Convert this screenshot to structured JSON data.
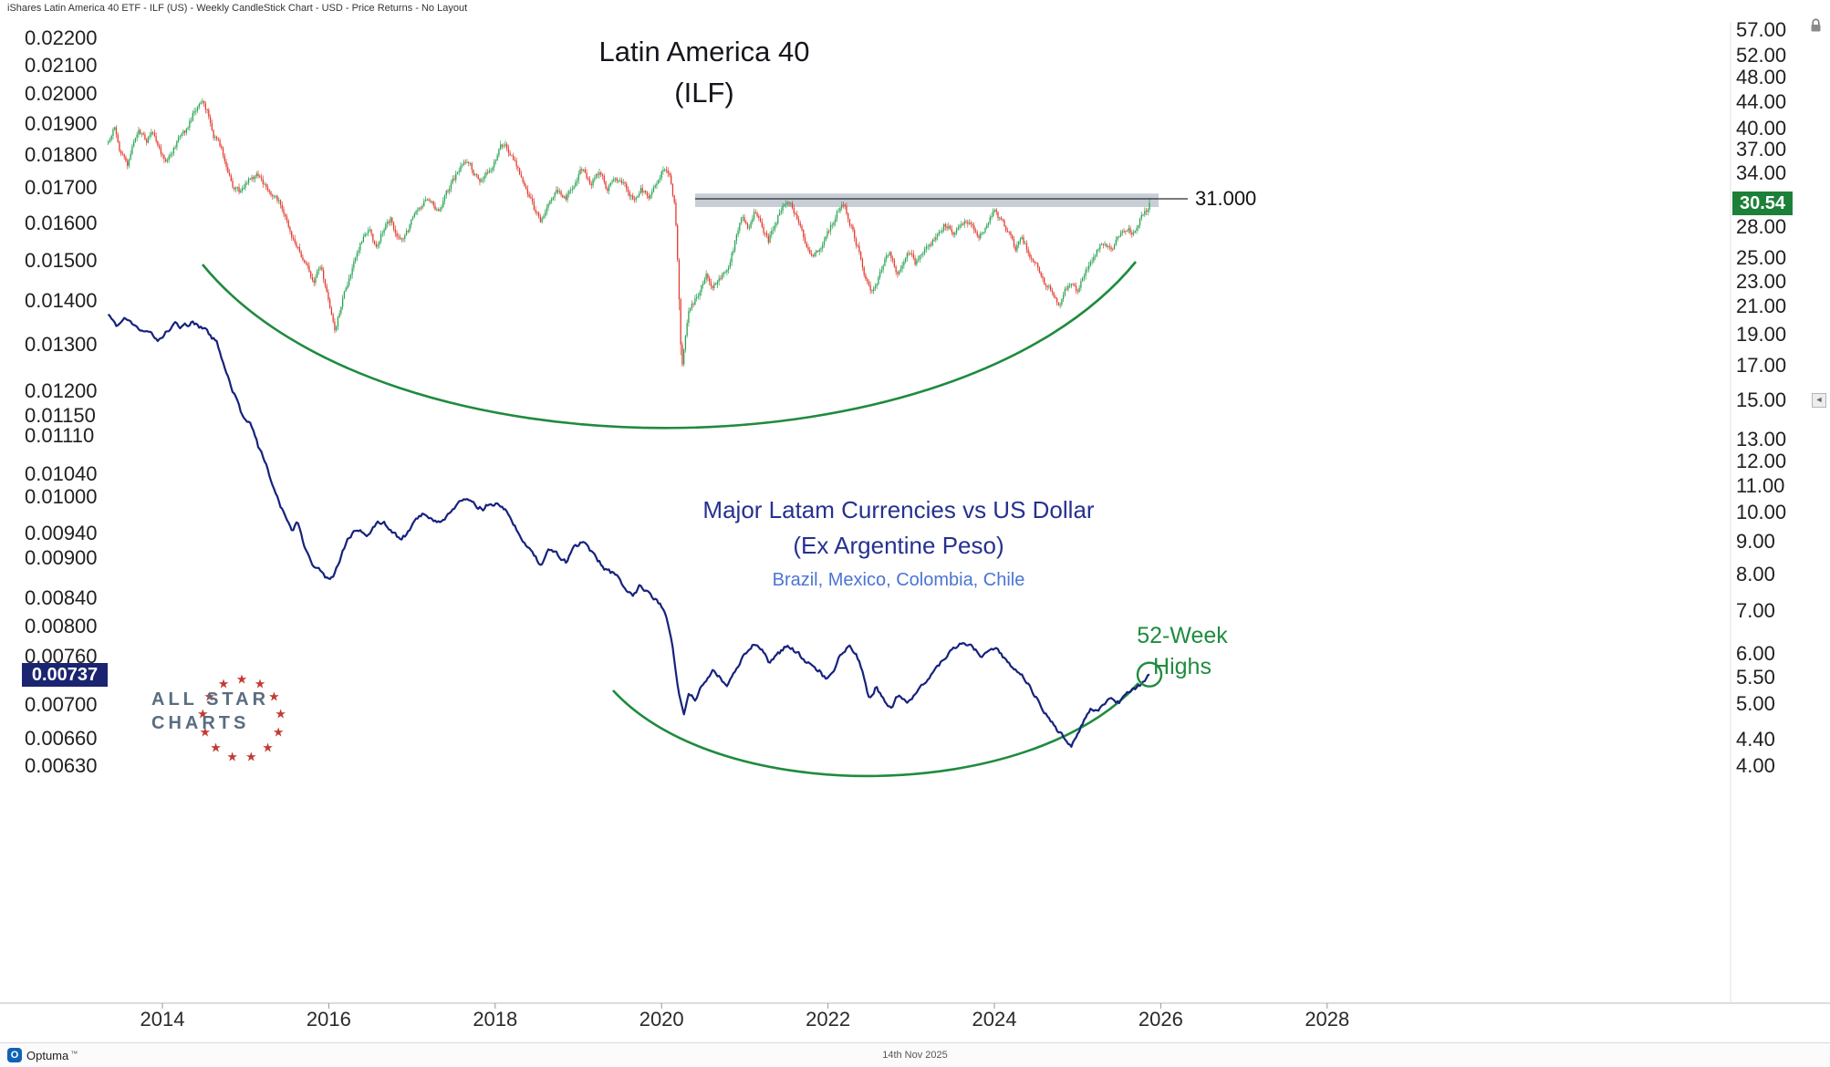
{
  "window": {
    "titlebar_text": "iShares Latin America 40 ETF - ILF (US) - Weekly CandleStick Chart - USD - Price Returns - No Layout",
    "statusbar": {
      "brand": "Optuma",
      "trademark": "™",
      "date": "14th Nov 2025"
    }
  },
  "annotations": {
    "main_title": {
      "line1": "Latin America 40",
      "line2": "(ILF)"
    },
    "currency_title": {
      "line1": "Major Latam Currencies vs US Dollar",
      "line2": "(Ex Argentine Peso)",
      "line3": "Brazil, Mexico, Colombia, Chile"
    },
    "highs_label": {
      "line1": "52-Week",
      "line2": "Highs"
    },
    "resistance_label": "31.000",
    "ilf_price_label": "30.54",
    "currency_price_label": "0.00737",
    "logo": {
      "line1": "ALL STAR",
      "line2": "CHARTS",
      "star_count": 13
    }
  },
  "colors": {
    "candle_up": "#27a351",
    "candle_down": "#e23b30",
    "currency_line": "#16227c",
    "arc_green": "#1f8b3e",
    "resistance_band": "#c7ced6",
    "resistance_line": "#2b2b2b",
    "ilf_price_box": "#1d8038",
    "currency_price_box": "#1b2470",
    "logo_text": "#5a6d80",
    "logo_star": "#c23a32"
  },
  "axes": {
    "x": {
      "ticks": [
        "2014",
        "2016",
        "2018",
        "2020",
        "2022",
        "2024",
        "2026",
        "2028"
      ]
    },
    "left": {
      "scale": "log",
      "ticks": [
        "0.02200",
        "0.02100",
        "0.02000",
        "0.01900",
        "0.01800",
        "0.01700",
        "0.01600",
        "0.01500",
        "0.01400",
        "0.01300",
        "0.01200",
        "0.01150",
        "0.01110",
        "0.01040",
        "0.01000",
        "0.00940",
        "0.00900",
        "0.00840",
        "0.00800",
        "0.00760",
        "0.00700",
        "0.00660",
        "0.00630"
      ]
    },
    "right": {
      "scale": "log",
      "ticks": [
        "57.00",
        "52.00",
        "48.00",
        "44.00",
        "40.00",
        "37.00",
        "34.00",
        "28.00",
        "25.00",
        "23.00",
        "21.00",
        "19.00",
        "17.00",
        "15.00",
        "13.00",
        "12.00",
        "11.00",
        "10.00",
        "9.00",
        "8.00",
        "7.00",
        "6.00",
        "5.50",
        "5.00",
        "4.40",
        "4.00"
      ]
    }
  },
  "chart_data": [
    {
      "type": "candlestick",
      "name": "iShares Latin America 40 ETF (ILF), weekly",
      "axis": "right",
      "axis_scale": "log",
      "frequency": "weekly",
      "x_range": [
        2013.35,
        2025.875
      ],
      "last_price": 30.54,
      "resistance_line": {
        "value": 31.0,
        "label": "31.000"
      },
      "resistance_zone": [
        30.1,
        31.6
      ],
      "annotation": "green rounded-base arc 2014-2025 under the price lows",
      "keypoints": [
        [
          2013.35,
          38.0
        ],
        [
          2013.42,
          40.5
        ],
        [
          2013.5,
          36.5
        ],
        [
          2013.58,
          34.8
        ],
        [
          2013.65,
          37.5
        ],
        [
          2013.72,
          39.5
        ],
        [
          2013.8,
          38.0
        ],
        [
          2013.88,
          39.5
        ],
        [
          2013.95,
          37.0
        ],
        [
          2014.05,
          35.2
        ],
        [
          2014.12,
          36.5
        ],
        [
          2014.2,
          38.5
        ],
        [
          2014.3,
          40.0
        ],
        [
          2014.4,
          43.0
        ],
        [
          2014.47,
          44.0
        ],
        [
          2014.55,
          42.0
        ],
        [
          2014.62,
          39.0
        ],
        [
          2014.7,
          37.5
        ],
        [
          2014.78,
          35.0
        ],
        [
          2014.85,
          32.5
        ],
        [
          2014.95,
          31.5
        ],
        [
          2015.05,
          33.5
        ],
        [
          2015.15,
          34.0
        ],
        [
          2015.25,
          32.0
        ],
        [
          2015.35,
          31.0
        ],
        [
          2015.45,
          30.0
        ],
        [
          2015.55,
          27.5
        ],
        [
          2015.65,
          25.5
        ],
        [
          2015.75,
          24.0
        ],
        [
          2015.82,
          23.0
        ],
        [
          2015.9,
          24.5
        ],
        [
          2015.97,
          22.5
        ],
        [
          2016.04,
          20.0
        ],
        [
          2016.08,
          19.2
        ],
        [
          2016.15,
          21.0
        ],
        [
          2016.25,
          23.5
        ],
        [
          2016.33,
          25.0
        ],
        [
          2016.42,
          27.0
        ],
        [
          2016.5,
          27.5
        ],
        [
          2016.58,
          25.8
        ],
        [
          2016.67,
          28.0
        ],
        [
          2016.75,
          28.8
        ],
        [
          2016.83,
          26.5
        ],
        [
          2016.92,
          27.0
        ],
        [
          2017.0,
          28.5
        ],
        [
          2017.1,
          30.0
        ],
        [
          2017.2,
          31.0
        ],
        [
          2017.3,
          29.5
        ],
        [
          2017.4,
          31.5
        ],
        [
          2017.5,
          33.0
        ],
        [
          2017.58,
          34.5
        ],
        [
          2017.67,
          36.0
        ],
        [
          2017.75,
          34.0
        ],
        [
          2017.85,
          33.0
        ],
        [
          2017.95,
          34.5
        ],
        [
          2018.05,
          37.0
        ],
        [
          2018.1,
          38.0
        ],
        [
          2018.18,
          36.5
        ],
        [
          2018.28,
          34.5
        ],
        [
          2018.38,
          32.0
        ],
        [
          2018.48,
          29.5
        ],
        [
          2018.55,
          28.5
        ],
        [
          2018.65,
          30.5
        ],
        [
          2018.75,
          32.0
        ],
        [
          2018.85,
          31.0
        ],
        [
          2018.95,
          33.0
        ],
        [
          2019.05,
          34.5
        ],
        [
          2019.15,
          33.0
        ],
        [
          2019.25,
          34.0
        ],
        [
          2019.35,
          32.0
        ],
        [
          2019.45,
          33.5
        ],
        [
          2019.55,
          32.5
        ],
        [
          2019.65,
          31.0
        ],
        [
          2019.75,
          32.0
        ],
        [
          2019.85,
          31.5
        ],
        [
          2019.95,
          33.5
        ],
        [
          2020.03,
          34.5
        ],
        [
          2020.1,
          33.5
        ],
        [
          2020.16,
          30.0
        ],
        [
          2020.2,
          23.0
        ],
        [
          2020.24,
          16.5
        ],
        [
          2020.28,
          18.5
        ],
        [
          2020.33,
          20.5
        ],
        [
          2020.4,
          21.5
        ],
        [
          2020.47,
          22.5
        ],
        [
          2020.54,
          23.5
        ],
        [
          2020.6,
          22.5
        ],
        [
          2020.68,
          23.0
        ],
        [
          2020.75,
          23.5
        ],
        [
          2020.82,
          24.5
        ],
        [
          2020.9,
          27.0
        ],
        [
          2020.97,
          29.0
        ],
        [
          2021.05,
          28.0
        ],
        [
          2021.12,
          29.5
        ],
        [
          2021.2,
          28.0
        ],
        [
          2021.28,
          26.5
        ],
        [
          2021.35,
          28.0
        ],
        [
          2021.42,
          29.5
        ],
        [
          2021.5,
          30.8
        ],
        [
          2021.57,
          30.0
        ],
        [
          2021.65,
          28.5
        ],
        [
          2021.72,
          26.5
        ],
        [
          2021.8,
          25.0
        ],
        [
          2021.88,
          25.5
        ],
        [
          2021.95,
          26.5
        ],
        [
          2022.03,
          28.0
        ],
        [
          2022.1,
          29.5
        ],
        [
          2022.16,
          30.6
        ],
        [
          2022.22,
          29.5
        ],
        [
          2022.3,
          27.5
        ],
        [
          2022.38,
          25.5
        ],
        [
          2022.45,
          23.5
        ],
        [
          2022.52,
          21.8
        ],
        [
          2022.6,
          23.0
        ],
        [
          2022.68,
          25.0
        ],
        [
          2022.75,
          25.5
        ],
        [
          2022.82,
          23.5
        ],
        [
          2022.9,
          24.5
        ],
        [
          2022.97,
          25.5
        ],
        [
          2023.05,
          24.5
        ],
        [
          2023.12,
          25.5
        ],
        [
          2023.2,
          26.0
        ],
        [
          2023.3,
          27.0
        ],
        [
          2023.4,
          28.5
        ],
        [
          2023.5,
          27.5
        ],
        [
          2023.6,
          28.0
        ],
        [
          2023.7,
          28.8
        ],
        [
          2023.8,
          27.0
        ],
        [
          2023.9,
          28.0
        ],
        [
          2024.0,
          29.8
        ],
        [
          2024.08,
          28.5
        ],
        [
          2024.16,
          27.5
        ],
        [
          2024.25,
          26.0
        ],
        [
          2024.33,
          27.0
        ],
        [
          2024.42,
          25.5
        ],
        [
          2024.5,
          24.5
        ],
        [
          2024.6,
          23.0
        ],
        [
          2024.7,
          22.0
        ],
        [
          2024.78,
          21.3
        ],
        [
          2024.85,
          22.5
        ],
        [
          2024.93,
          23.0
        ],
        [
          2025.0,
          22.3
        ],
        [
          2025.08,
          23.5
        ],
        [
          2025.16,
          24.5
        ],
        [
          2025.25,
          25.8
        ],
        [
          2025.33,
          26.5
        ],
        [
          2025.42,
          26.0
        ],
        [
          2025.5,
          27.3
        ],
        [
          2025.58,
          28.0
        ],
        [
          2025.66,
          27.5
        ],
        [
          2025.75,
          28.8
        ],
        [
          2025.82,
          29.5
        ],
        [
          2025.875,
          30.54
        ]
      ]
    },
    {
      "type": "line",
      "name": "Major Latam Currencies vs US Dollar (Ex Argentine Peso) - Brazil, Mexico, Colombia, Chile",
      "axis": "left",
      "axis_scale": "log",
      "frequency": "weekly",
      "x_range": [
        2013.35,
        2025.875
      ],
      "last_price": 0.00737,
      "annotation": "green rounded-base arc 2020-2025 under the lows; green circle marks 52-week highs at the latest value",
      "keypoints": [
        [
          2013.35,
          0.0137
        ],
        [
          2013.45,
          0.01345
        ],
        [
          2013.55,
          0.0136
        ],
        [
          2013.65,
          0.0134
        ],
        [
          2013.75,
          0.01325
        ],
        [
          2013.85,
          0.01335
        ],
        [
          2013.95,
          0.01305
        ],
        [
          2014.05,
          0.0133
        ],
        [
          2014.15,
          0.01345
        ],
        [
          2014.25,
          0.0134
        ],
        [
          2014.35,
          0.0135
        ],
        [
          2014.45,
          0.0134
        ],
        [
          2014.55,
          0.01325
        ],
        [
          2014.65,
          0.01305
        ],
        [
          2014.75,
          0.0125
        ],
        [
          2014.85,
          0.012
        ],
        [
          2014.95,
          0.01155
        ],
        [
          2015.05,
          0.0114
        ],
        [
          2015.15,
          0.0109
        ],
        [
          2015.25,
          0.01055
        ],
        [
          2015.35,
          0.0101
        ],
        [
          2015.45,
          0.00975
        ],
        [
          2015.55,
          0.00945
        ],
        [
          2015.62,
          0.00955
        ],
        [
          2015.7,
          0.0092
        ],
        [
          2015.8,
          0.0089
        ],
        [
          2015.9,
          0.0088
        ],
        [
          2015.97,
          0.00868
        ],
        [
          2016.05,
          0.0087
        ],
        [
          2016.15,
          0.00905
        ],
        [
          2016.25,
          0.00935
        ],
        [
          2016.35,
          0.0095
        ],
        [
          2016.45,
          0.00935
        ],
        [
          2016.55,
          0.0095
        ],
        [
          2016.65,
          0.0096
        ],
        [
          2016.75,
          0.00945
        ],
        [
          2016.85,
          0.0093
        ],
        [
          2016.95,
          0.0094
        ],
        [
          2017.05,
          0.00965
        ],
        [
          2017.15,
          0.00975
        ],
        [
          2017.25,
          0.00965
        ],
        [
          2017.35,
          0.00955
        ],
        [
          2017.45,
          0.00975
        ],
        [
          2017.55,
          0.00985
        ],
        [
          2017.65,
          0.01
        ],
        [
          2017.75,
          0.00985
        ],
        [
          2017.85,
          0.0098
        ],
        [
          2017.95,
          0.00992
        ],
        [
          2018.05,
          0.00988
        ],
        [
          2018.15,
          0.00975
        ],
        [
          2018.25,
          0.0095
        ],
        [
          2018.35,
          0.00925
        ],
        [
          2018.45,
          0.00905
        ],
        [
          2018.55,
          0.0089
        ],
        [
          2018.65,
          0.00915
        ],
        [
          2018.75,
          0.00905
        ],
        [
          2018.85,
          0.00895
        ],
        [
          2018.95,
          0.0092
        ],
        [
          2019.05,
          0.00925
        ],
        [
          2019.15,
          0.0091
        ],
        [
          2019.25,
          0.00895
        ],
        [
          2019.35,
          0.0088
        ],
        [
          2019.45,
          0.00875
        ],
        [
          2019.55,
          0.00855
        ],
        [
          2019.65,
          0.00845
        ],
        [
          2019.75,
          0.0086
        ],
        [
          2019.85,
          0.00845
        ],
        [
          2019.95,
          0.00838
        ],
        [
          2020.05,
          0.0082
        ],
        [
          2020.13,
          0.00772
        ],
        [
          2020.2,
          0.00722
        ],
        [
          2020.27,
          0.00688
        ],
        [
          2020.33,
          0.00718
        ],
        [
          2020.4,
          0.00705
        ],
        [
          2020.47,
          0.00722
        ],
        [
          2020.55,
          0.0073
        ],
        [
          2020.62,
          0.00742
        ],
        [
          2020.7,
          0.00735
        ],
        [
          2020.78,
          0.00725
        ],
        [
          2020.85,
          0.00738
        ],
        [
          2020.93,
          0.00752
        ],
        [
          2021.0,
          0.00765
        ],
        [
          2021.1,
          0.00778
        ],
        [
          2021.2,
          0.00768
        ],
        [
          2021.3,
          0.00752
        ],
        [
          2021.4,
          0.00762
        ],
        [
          2021.5,
          0.00775
        ],
        [
          2021.6,
          0.00768
        ],
        [
          2021.7,
          0.00758
        ],
        [
          2021.8,
          0.0075
        ],
        [
          2021.9,
          0.00742
        ],
        [
          2021.97,
          0.00732
        ],
        [
          2022.05,
          0.0074
        ],
        [
          2022.15,
          0.00762
        ],
        [
          2022.25,
          0.00772
        ],
        [
          2022.33,
          0.00765
        ],
        [
          2022.42,
          0.00742
        ],
        [
          2022.5,
          0.00705
        ],
        [
          2022.58,
          0.00722
        ],
        [
          2022.66,
          0.00708
        ],
        [
          2022.75,
          0.00695
        ],
        [
          2022.85,
          0.00712
        ],
        [
          2022.95,
          0.00702
        ],
        [
          2023.05,
          0.00712
        ],
        [
          2023.15,
          0.00725
        ],
        [
          2023.25,
          0.00738
        ],
        [
          2023.35,
          0.00752
        ],
        [
          2023.45,
          0.00765
        ],
        [
          2023.55,
          0.00772
        ],
        [
          2023.65,
          0.0078
        ],
        [
          2023.75,
          0.00772
        ],
        [
          2023.85,
          0.00762
        ],
        [
          2023.95,
          0.0077
        ],
        [
          2024.05,
          0.00768
        ],
        [
          2024.15,
          0.00755
        ],
        [
          2024.25,
          0.00742
        ],
        [
          2024.35,
          0.00732
        ],
        [
          2024.45,
          0.00718
        ],
        [
          2024.55,
          0.00702
        ],
        [
          2024.65,
          0.00685
        ],
        [
          2024.75,
          0.0067
        ],
        [
          2024.85,
          0.0066
        ],
        [
          2024.93,
          0.00652
        ],
        [
          2025.0,
          0.00668
        ],
        [
          2025.08,
          0.00683
        ],
        [
          2025.16,
          0.00695
        ],
        [
          2025.25,
          0.0069
        ],
        [
          2025.33,
          0.007
        ],
        [
          2025.42,
          0.00708
        ],
        [
          2025.5,
          0.00702
        ],
        [
          2025.58,
          0.00712
        ],
        [
          2025.66,
          0.00718
        ],
        [
          2025.75,
          0.00722
        ],
        [
          2025.82,
          0.0073
        ],
        [
          2025.875,
          0.00737
        ]
      ]
    }
  ]
}
